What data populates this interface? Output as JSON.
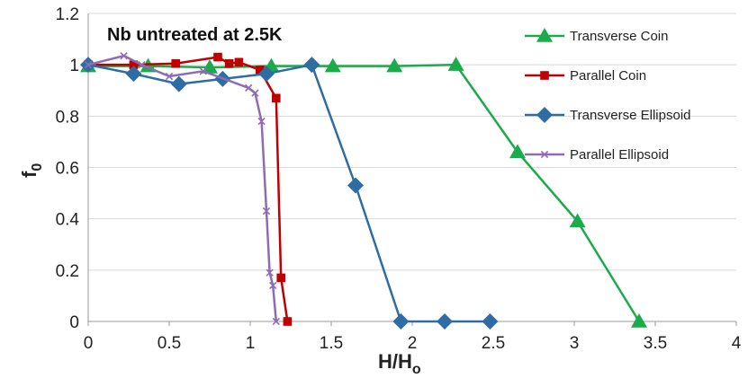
{
  "chart_data": {
    "type": "line",
    "title": "Nb untreated at 2.5K",
    "xlabel_main": "H/H",
    "xlabel_sub": "o",
    "ylabel_main": "f",
    "ylabel_sub": "0",
    "xlim": [
      0,
      4
    ],
    "ylim": [
      0,
      1.2
    ],
    "xticks": [
      0,
      0.5,
      1,
      1.5,
      2,
      2.5,
      3,
      3.5,
      4
    ],
    "yticks": [
      0,
      0.2,
      0.4,
      0.6,
      0.8,
      1,
      1.2
    ],
    "xtick_labels": [
      "0",
      "0.5",
      "1",
      "1.5",
      "2",
      "2.5",
      "3",
      "3.5",
      "4"
    ],
    "ytick_labels": [
      "0",
      "0.2",
      "0.4",
      "0.6",
      "0.8",
      "1",
      "1.2"
    ],
    "grid": "horizontal",
    "legend_position": "right",
    "series": [
      {
        "name": "Transverse Coin",
        "color": "#1aab4b",
        "marker": "triangle",
        "x": [
          0,
          0.37,
          0.75,
          1.13,
          1.51,
          1.89,
          2.27,
          2.65,
          3.02,
          3.4
        ],
        "y": [
          0.995,
          0.995,
          0.99,
          0.995,
          0.995,
          0.995,
          1.0,
          0.66,
          0.39,
          0.0
        ]
      },
      {
        "name": "Parallel Coin",
        "color": "#c00000",
        "marker": "square",
        "x": [
          0,
          0.28,
          0.54,
          0.8,
          0.87,
          0.93,
          1.06,
          1.16,
          1.19,
          1.23
        ],
        "y": [
          1.0,
          1.0,
          1.005,
          1.03,
          1.005,
          1.01,
          0.98,
          0.87,
          0.17,
          0.0
        ]
      },
      {
        "name": "Transverse Ellipsoid",
        "color": "#2e6da4",
        "marker": "diamond",
        "x": [
          0,
          0.28,
          0.56,
          0.83,
          1.1,
          1.38,
          1.65,
          1.93,
          2.2,
          2.48
        ],
        "y": [
          1.0,
          0.965,
          0.925,
          0.945,
          0.965,
          1.0,
          0.53,
          0.0,
          0.0,
          0.0
        ]
      },
      {
        "name": "Parallel Ellipsoid",
        "color": "#8f6bb4",
        "marker": "x",
        "x": [
          0,
          0.22,
          0.33,
          0.5,
          0.71,
          0.99,
          1.03,
          1.07,
          1.1,
          1.12,
          1.14,
          1.16
        ],
        "y": [
          1.0,
          1.035,
          1.0,
          0.955,
          0.975,
          0.91,
          0.89,
          0.78,
          0.43,
          0.19,
          0.14,
          0.0
        ]
      }
    ]
  }
}
